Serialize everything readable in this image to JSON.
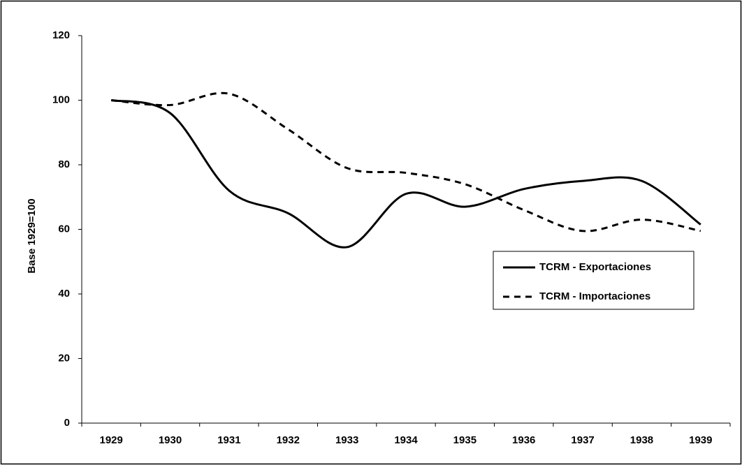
{
  "chart_data": {
    "type": "line",
    "y_label": "Base 1929=100",
    "categories": [
      "1929",
      "1930",
      "1931",
      "1932",
      "1933",
      "1934",
      "1935",
      "1936",
      "1937",
      "1938",
      "1939"
    ],
    "series": [
      {
        "name": "TCRM - Exportaciones",
        "color": "#000000",
        "style": "solid",
        "values": [
          100,
          96,
          72,
          65,
          54.5,
          71,
          67,
          72.5,
          75,
          75,
          61.5
        ]
      },
      {
        "name": "TCRM - Importaciones",
        "color": "#000000",
        "style": "dashed",
        "values": [
          100,
          98.5,
          102,
          91,
          79,
          77.5,
          74,
          66,
          59.5,
          63,
          59.5
        ]
      }
    ],
    "ylim": [
      0,
      120
    ],
    "yticks": [
      0,
      20,
      40,
      60,
      80,
      100,
      120
    ],
    "smooth": true,
    "grid": false,
    "legend": "right"
  }
}
